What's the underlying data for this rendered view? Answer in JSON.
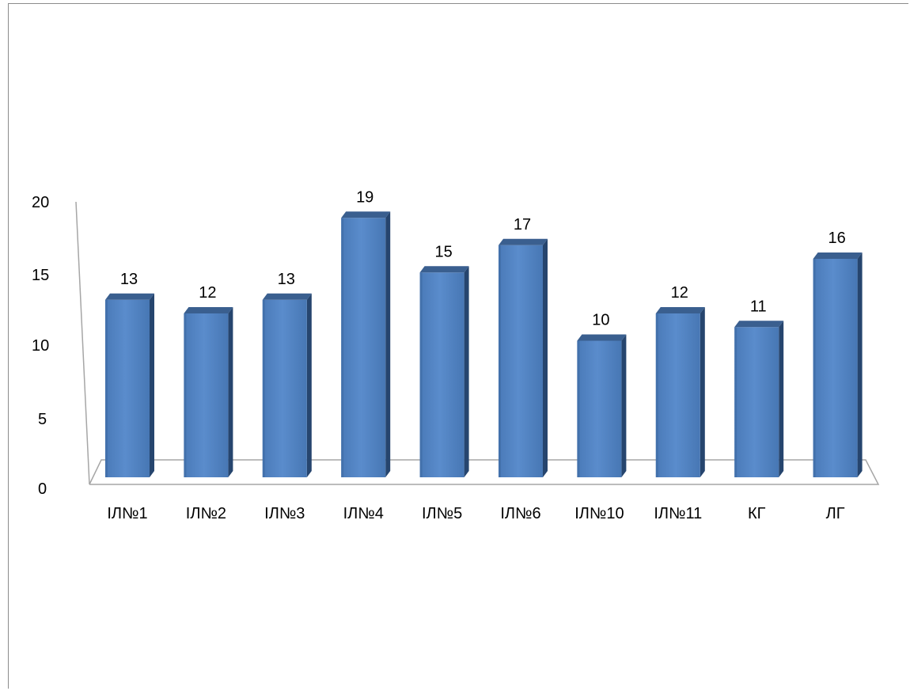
{
  "chart_data": {
    "type": "bar",
    "style": "3d-columns",
    "categories": [
      "ІЛ№1",
      "ІЛ№2",
      "ІЛ№3",
      "ІЛ№4",
      "ІЛ№5",
      "ІЛ№6",
      "ІЛ№10",
      "ІЛ№11",
      "КГ",
      "ЛГ"
    ],
    "values": [
      13,
      12,
      13,
      19,
      15,
      17,
      10,
      12,
      11,
      16
    ],
    "yticks": [
      0,
      5,
      10,
      15,
      20
    ],
    "ylim": [
      0,
      20
    ],
    "data_labels": true,
    "grid": false,
    "legend": "none",
    "bar_color": "#4f81bd",
    "bar_top_color": "#3a5f8f",
    "bar_side_color": "#26456e"
  }
}
